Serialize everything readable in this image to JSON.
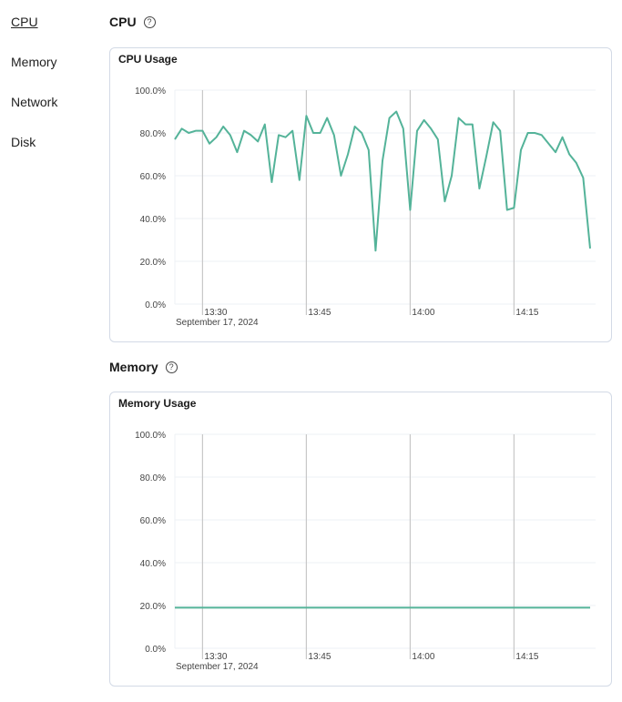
{
  "sidebar": {
    "items": [
      {
        "label": "CPU",
        "active": true
      },
      {
        "label": "Memory"
      },
      {
        "label": "Network"
      },
      {
        "label": "Disk"
      }
    ]
  },
  "sections": {
    "cpu": {
      "title": "CPU",
      "help_icon": "question-circle-icon"
    },
    "memory": {
      "title": "Memory",
      "help_icon": "question-circle-icon"
    }
  },
  "chart_data": [
    {
      "type": "line",
      "title": "CPU Usage",
      "line_color": "#54b399",
      "ylim": [
        0,
        100
      ],
      "yticks": [
        "0.0%",
        "20.0%",
        "40.0%",
        "60.0%",
        "80.0%",
        "100.0%"
      ],
      "xticks": [
        "13:30",
        "13:45",
        "14:00",
        "14:15"
      ],
      "xdate": "September 17, 2024",
      "grid": true,
      "x": [
        "13:26",
        "13:27",
        "13:28",
        "13:29",
        "13:30",
        "13:31",
        "13:32",
        "13:33",
        "13:34",
        "13:35",
        "13:36",
        "13:37",
        "13:38",
        "13:39",
        "13:40",
        "13:41",
        "13:42",
        "13:43",
        "13:44",
        "13:45",
        "13:46",
        "13:47",
        "13:48",
        "13:49",
        "13:50",
        "13:51",
        "13:52",
        "13:53",
        "13:54",
        "13:55",
        "13:56",
        "13:57",
        "13:58",
        "13:59",
        "14:00",
        "14:01",
        "14:02",
        "14:03",
        "14:04",
        "14:05",
        "14:06",
        "14:07",
        "14:08",
        "14:09",
        "14:10",
        "14:11",
        "14:12",
        "14:13",
        "14:14",
        "14:15",
        "14:16",
        "14:17",
        "14:18",
        "14:19",
        "14:20",
        "14:21",
        "14:22",
        "14:23",
        "14:24",
        "14:25",
        "14:26"
      ],
      "values": [
        77,
        82,
        80,
        81,
        81,
        75,
        78,
        83,
        79,
        71,
        81,
        79,
        76,
        84,
        57,
        79,
        78,
        81,
        58,
        88,
        80,
        80,
        87,
        79,
        60,
        70,
        83,
        80,
        72,
        25,
        67,
        87,
        90,
        82,
        44,
        81,
        86,
        82,
        77,
        48,
        60,
        87,
        84,
        84,
        54,
        69,
        85,
        81,
        44,
        45,
        72,
        80,
        80,
        79,
        75,
        71,
        78,
        70,
        66,
        59,
        26
      ]
    },
    {
      "type": "line",
      "title": "Memory Usage",
      "line_color": "#54b399",
      "ylim": [
        0,
        100
      ],
      "yticks": [
        "0.0%",
        "20.0%",
        "40.0%",
        "60.0%",
        "80.0%",
        "100.0%"
      ],
      "xticks": [
        "13:30",
        "13:45",
        "14:00",
        "14:15"
      ],
      "xdate": "September 17, 2024",
      "grid": true,
      "x": [
        "13:26",
        "14:26"
      ],
      "values": [
        19,
        19
      ]
    }
  ]
}
